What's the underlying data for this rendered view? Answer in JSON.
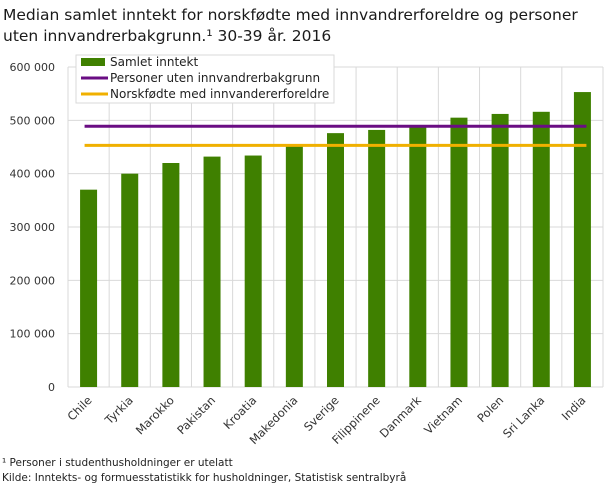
{
  "chart_data": {
    "type": "bar",
    "title": "Median samlet inntekt for norskfødte med innvandrerforeldre og personer uten innvandrerbakgrunn.¹ 30-39 år. 2016",
    "categories": [
      "Chile",
      "Tyrkia",
      "Marokko",
      "Pakistan",
      "Kroatia",
      "Makedonia",
      "Sverige",
      "Filippinene",
      "Danmark",
      "Vietnam",
      "Polen",
      "Sri Lanka",
      "India"
    ],
    "series": [
      {
        "name": "Samlet inntekt",
        "type": "bar",
        "color": "#3f8000",
        "values": [
          370000,
          400000,
          420000,
          432000,
          434000,
          453000,
          476000,
          482000,
          490000,
          505000,
          512000,
          516000,
          553000
        ]
      },
      {
        "name": "Personer uten innvandrerbakgrunn",
        "type": "line",
        "color": "#6a0d83",
        "value": 489000
      },
      {
        "name": "Norskfødte med innvandererforeldre",
        "type": "line",
        "color": "#f0b000",
        "value": 453000
      }
    ],
    "ylim": [
      0,
      600000
    ],
    "yticks": [
      "0",
      "100 000",
      "200 000",
      "300 000",
      "400 000",
      "500 000",
      "600 000"
    ],
    "grid": true,
    "legend": "top-left"
  },
  "footnotes": {
    "note": "¹ Personer i studenthusholdninger  er utelatt",
    "source": "Kilde: Inntekts- og formuesstatistikk for husholdninger,  Statistisk sentralbyrå"
  }
}
